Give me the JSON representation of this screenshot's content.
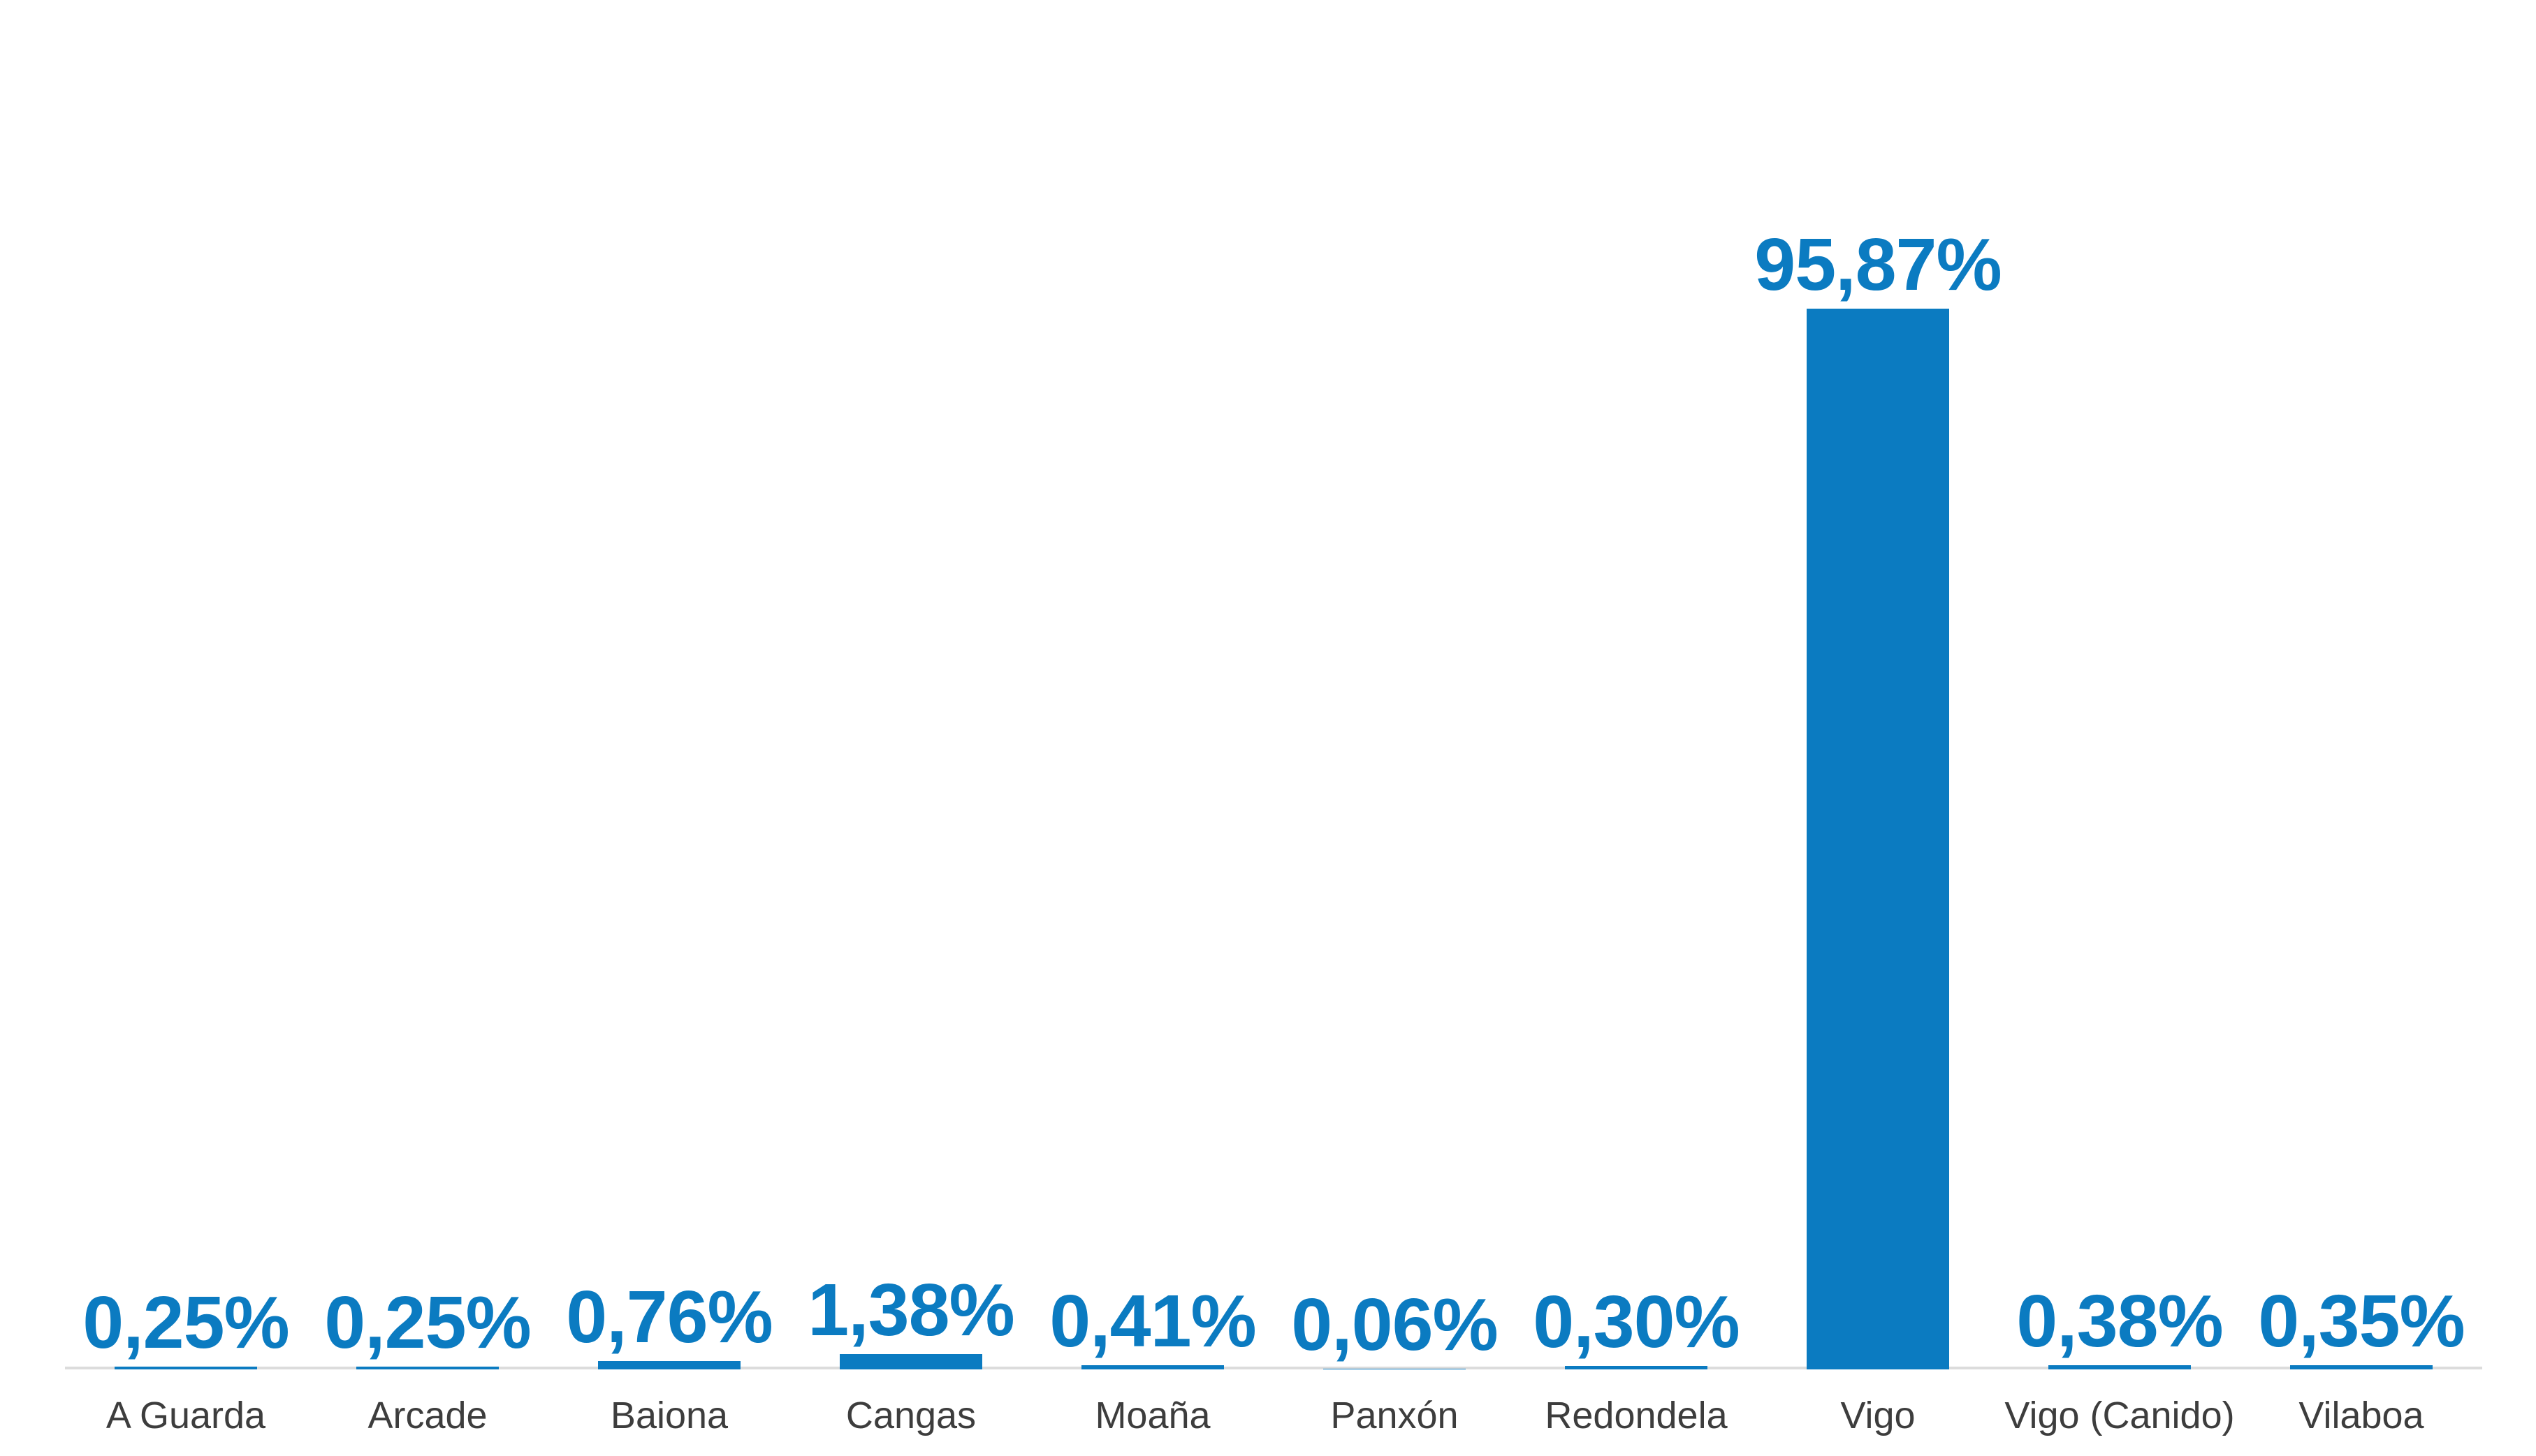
{
  "chart_data": {
    "type": "bar",
    "title": "",
    "xlabel": "",
    "ylabel": "",
    "categories": [
      "A Guarda",
      "Arcade",
      "Baiona",
      "Cangas",
      "Moaña",
      "Panxón",
      "Redondela",
      "Vigo",
      "Vigo (Canido)",
      "Vilaboa"
    ],
    "values": [
      0.25,
      0.25,
      0.76,
      1.38,
      0.41,
      0.06,
      0.3,
      95.87,
      0.38,
      0.35
    ],
    "value_labels": [
      "0,25%",
      "0,25%",
      "0,76%",
      "1,38%",
      "0,41%",
      "0,06%",
      "0,30%",
      "95,87%",
      "0,38%",
      "0,35%"
    ],
    "ylim": [
      0,
      100
    ],
    "grid": false,
    "legend": false,
    "axis_ticks": "none",
    "bar_color": "#0b7bc1",
    "value_label_color": "#0b7bc1",
    "category_label_color": "#3d3d3d",
    "axis_line_color": "#dcdcdc",
    "background_color": "#ffffff"
  }
}
